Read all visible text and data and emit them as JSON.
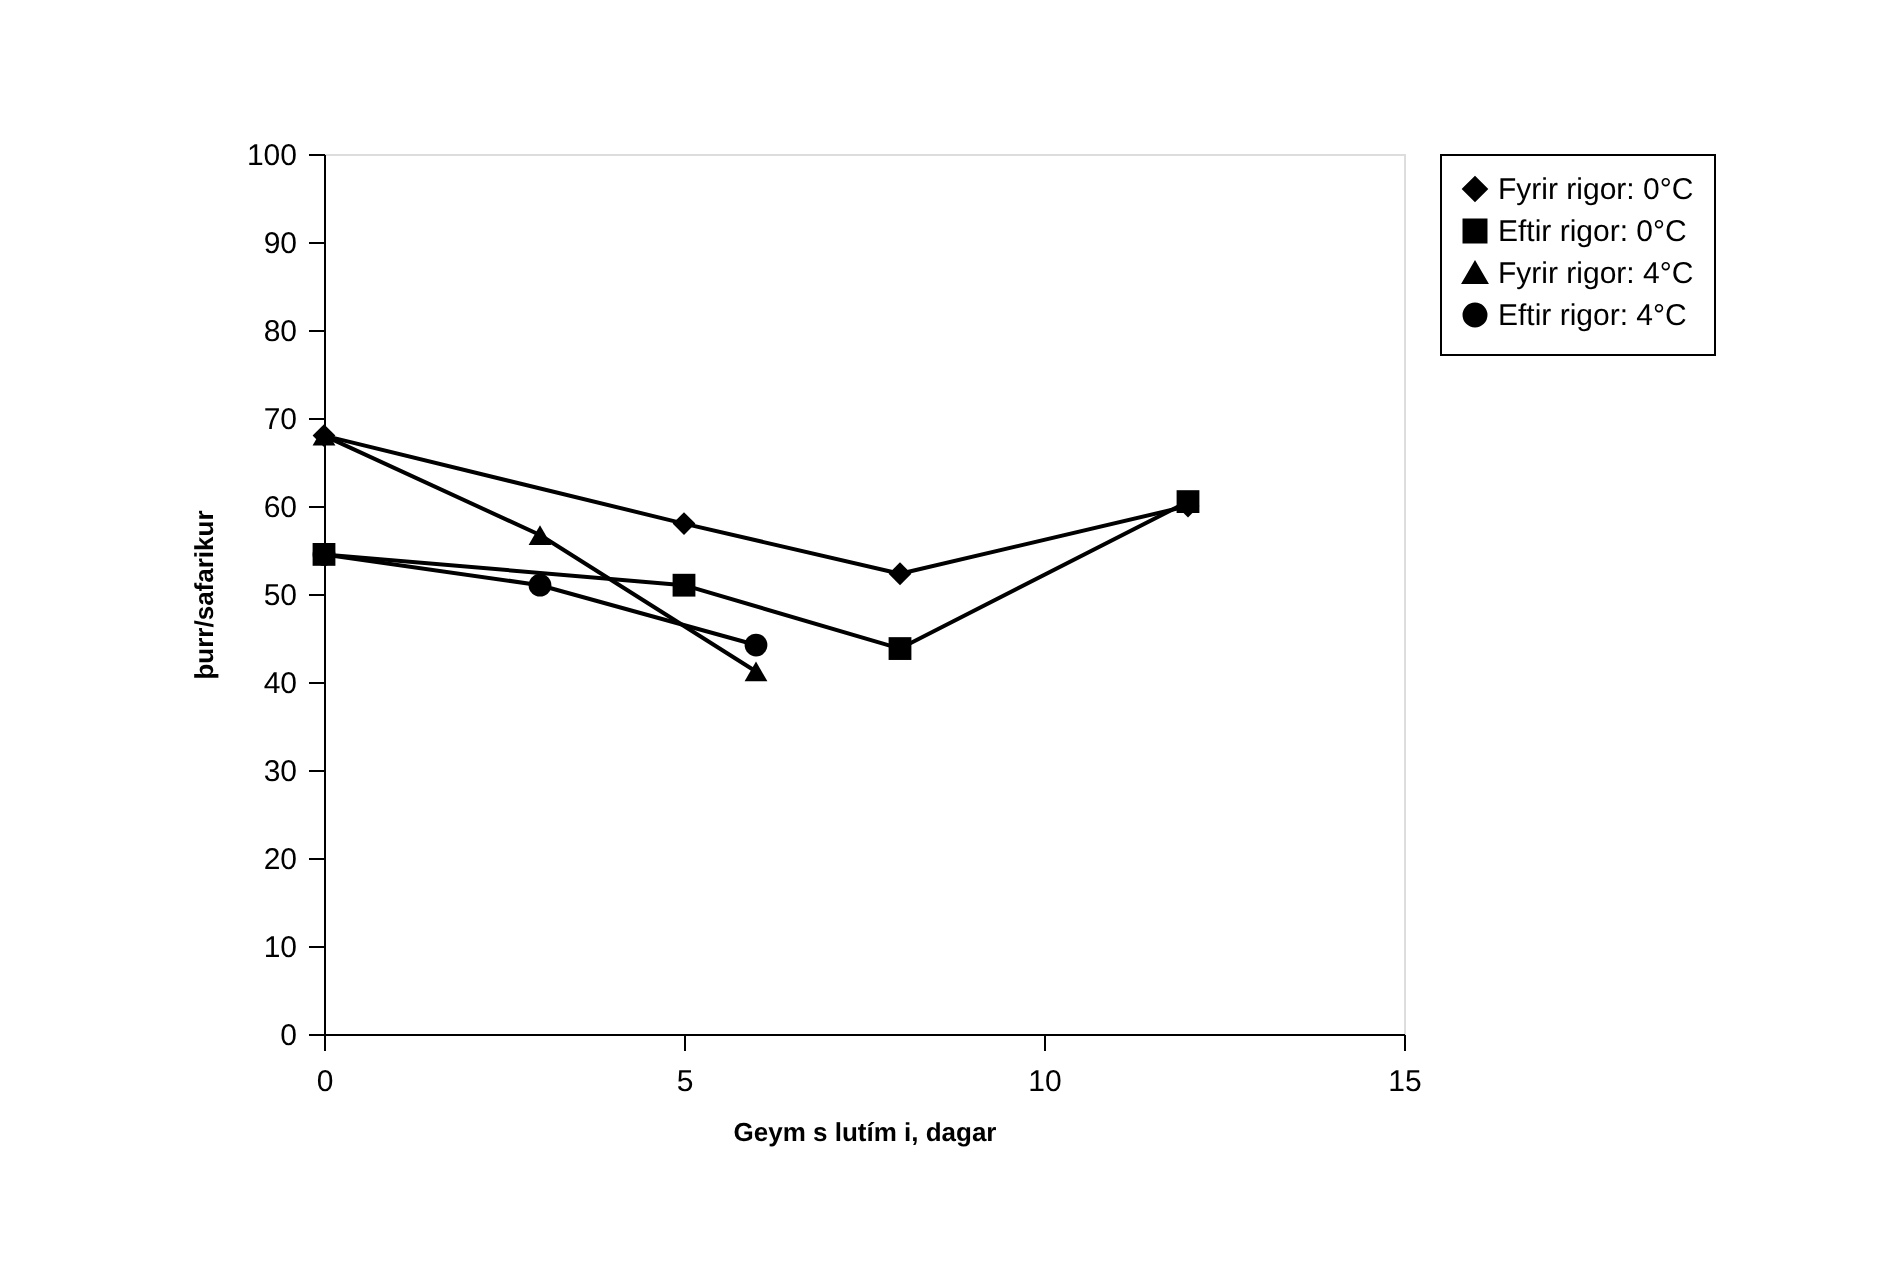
{
  "chart_data": {
    "type": "line",
    "xlabel": "Geym s lutím i, dagar",
    "ylabel": "þurr/safarikur",
    "xlim": [
      0,
      15
    ],
    "xticks": [
      0,
      5,
      10,
      15
    ],
    "ylim": [
      0,
      100
    ],
    "yticks": [
      0,
      10,
      20,
      30,
      40,
      50,
      60,
      70,
      80,
      90,
      100
    ],
    "grid": false,
    "legend": "top right",
    "line_style": "solid",
    "series": [
      {
        "name": "Fyrir rigor: 0°C",
        "color": "#000000",
        "marker": "diamond",
        "x": [
          0,
          5,
          8,
          12
        ],
        "values": [
          68,
          58,
          52.3,
          60
        ]
      },
      {
        "name": "Eftir rigor: 0°C",
        "color": "#000000",
        "marker": "square",
        "x": [
          0,
          5,
          8,
          12
        ],
        "values": [
          54.5,
          51,
          43.8,
          60.5
        ]
      },
      {
        "name": "Fyrir rigor: 4°C",
        "color": "#000000",
        "marker": "triangle",
        "x": [
          0,
          3,
          6
        ],
        "values": [
          68,
          56.7,
          41.2
        ]
      },
      {
        "name": "Eftir rigor: 4°C",
        "color": "#000000",
        "marker": "circle",
        "x": [
          0,
          3,
          6
        ],
        "values": [
          54.5,
          51,
          44.2
        ]
      }
    ]
  }
}
